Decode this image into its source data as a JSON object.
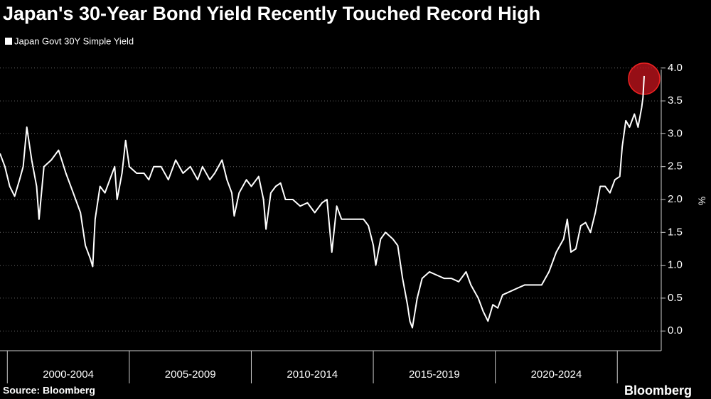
{
  "chart_data": {
    "type": "line",
    "title": "Japan's 30-Year Bond Yield Recently Touched Record High",
    "y_axis_label": "%",
    "source": "Source: Bloomberg",
    "brand": "Bloomberg",
    "grid": true,
    "xlim": [
      1999.7,
      2026.8
    ],
    "ylim": [
      -0.3,
      4.3
    ],
    "yticks": [
      {
        "value": 0,
        "label": "0.0"
      },
      0.5,
      {
        "value": 1,
        "label": "1.0"
      },
      1.5,
      {
        "value": 2,
        "label": "2.0"
      },
      2.5,
      {
        "value": 3,
        "label": "3.0"
      },
      3.5,
      {
        "value": 4,
        "label": "4.0"
      }
    ],
    "periods": [
      {
        "label": "2000-2004",
        "start": 2000,
        "end": 2005
      },
      {
        "label": "2005-2009",
        "start": 2005,
        "end": 2010
      },
      {
        "label": "2010-2014",
        "start": 2010,
        "end": 2015
      },
      {
        "label": "2015-2019",
        "start": 2015,
        "end": 2020
      },
      {
        "label": "2020-2024",
        "start": 2020,
        "end": 2025
      }
    ],
    "x": [
      1999.7,
      1999.9,
      2000.1,
      2000.3,
      2000.5,
      2000.65,
      2000.8,
      2001.0,
      2001.2,
      2001.3,
      2001.5,
      2001.8,
      2002.1,
      2002.4,
      2002.7,
      2003.0,
      2003.2,
      2003.4,
      2003.5,
      2003.6,
      2003.8,
      2004.0,
      2004.2,
      2004.4,
      2004.5,
      2004.7,
      2004.85,
      2005.0,
      2005.3,
      2005.6,
      2005.8,
      2006.0,
      2006.3,
      2006.6,
      2006.9,
      2007.2,
      2007.5,
      2007.8,
      2008.0,
      2008.3,
      2008.5,
      2008.8,
      2009.0,
      2009.2,
      2009.3,
      2009.5,
      2009.8,
      2010.0,
      2010.3,
      2010.5,
      2010.6,
      2010.8,
      2011.0,
      2011.2,
      2011.4,
      2011.7,
      2012.0,
      2012.3,
      2012.6,
      2012.9,
      2013.1,
      2013.3,
      2013.5,
      2013.7,
      2014.0,
      2014.3,
      2014.6,
      2014.8,
      2015.0,
      2015.1,
      2015.3,
      2015.5,
      2015.8,
      2016.0,
      2016.2,
      2016.4,
      2016.5,
      2016.6,
      2016.8,
      2017.0,
      2017.3,
      2017.6,
      2017.9,
      2018.2,
      2018.5,
      2018.8,
      2019.0,
      2019.3,
      2019.5,
      2019.7,
      2019.9,
      2020.1,
      2020.3,
      2020.6,
      2020.9,
      2021.2,
      2021.6,
      2021.9,
      2022.2,
      2022.5,
      2022.8,
      2022.95,
      2023.1,
      2023.3,
      2023.5,
      2023.7,
      2023.9,
      2024.1,
      2024.3,
      2024.5,
      2024.7,
      2024.9,
      2025.1,
      2025.2,
      2025.35,
      2025.5,
      2025.7,
      2025.85,
      2026.0,
      2026.05,
      2026.1
    ],
    "series": [
      {
        "name": "Japan Govt 30Y Simple Yield",
        "color": "#ffffff",
        "values": [
          2.7,
          2.5,
          2.2,
          2.05,
          2.3,
          2.5,
          3.1,
          2.6,
          2.2,
          1.7,
          2.5,
          2.6,
          2.75,
          2.4,
          2.1,
          1.8,
          1.3,
          1.1,
          0.98,
          1.7,
          2.2,
          2.1,
          2.3,
          2.5,
          2.0,
          2.4,
          2.9,
          2.5,
          2.4,
          2.4,
          2.3,
          2.5,
          2.5,
          2.3,
          2.6,
          2.4,
          2.5,
          2.3,
          2.5,
          2.3,
          2.4,
          2.6,
          2.3,
          2.1,
          1.75,
          2.1,
          2.3,
          2.2,
          2.35,
          2.0,
          1.55,
          2.1,
          2.2,
          2.25,
          2.0,
          2.0,
          1.9,
          1.95,
          1.8,
          1.95,
          2.0,
          1.2,
          1.9,
          1.7,
          1.7,
          1.7,
          1.7,
          1.6,
          1.3,
          1.0,
          1.4,
          1.5,
          1.4,
          1.3,
          0.8,
          0.4,
          0.15,
          0.05,
          0.5,
          0.8,
          0.9,
          0.85,
          0.8,
          0.8,
          0.75,
          0.9,
          0.7,
          0.5,
          0.3,
          0.15,
          0.4,
          0.35,
          0.55,
          0.6,
          0.65,
          0.7,
          0.7,
          0.7,
          0.9,
          1.2,
          1.4,
          1.7,
          1.2,
          1.25,
          1.6,
          1.65,
          1.5,
          1.8,
          2.2,
          2.2,
          2.1,
          2.3,
          2.35,
          2.8,
          3.2,
          3.1,
          3.3,
          3.1,
          3.4,
          3.55,
          3.88
        ]
      }
    ]
  }
}
